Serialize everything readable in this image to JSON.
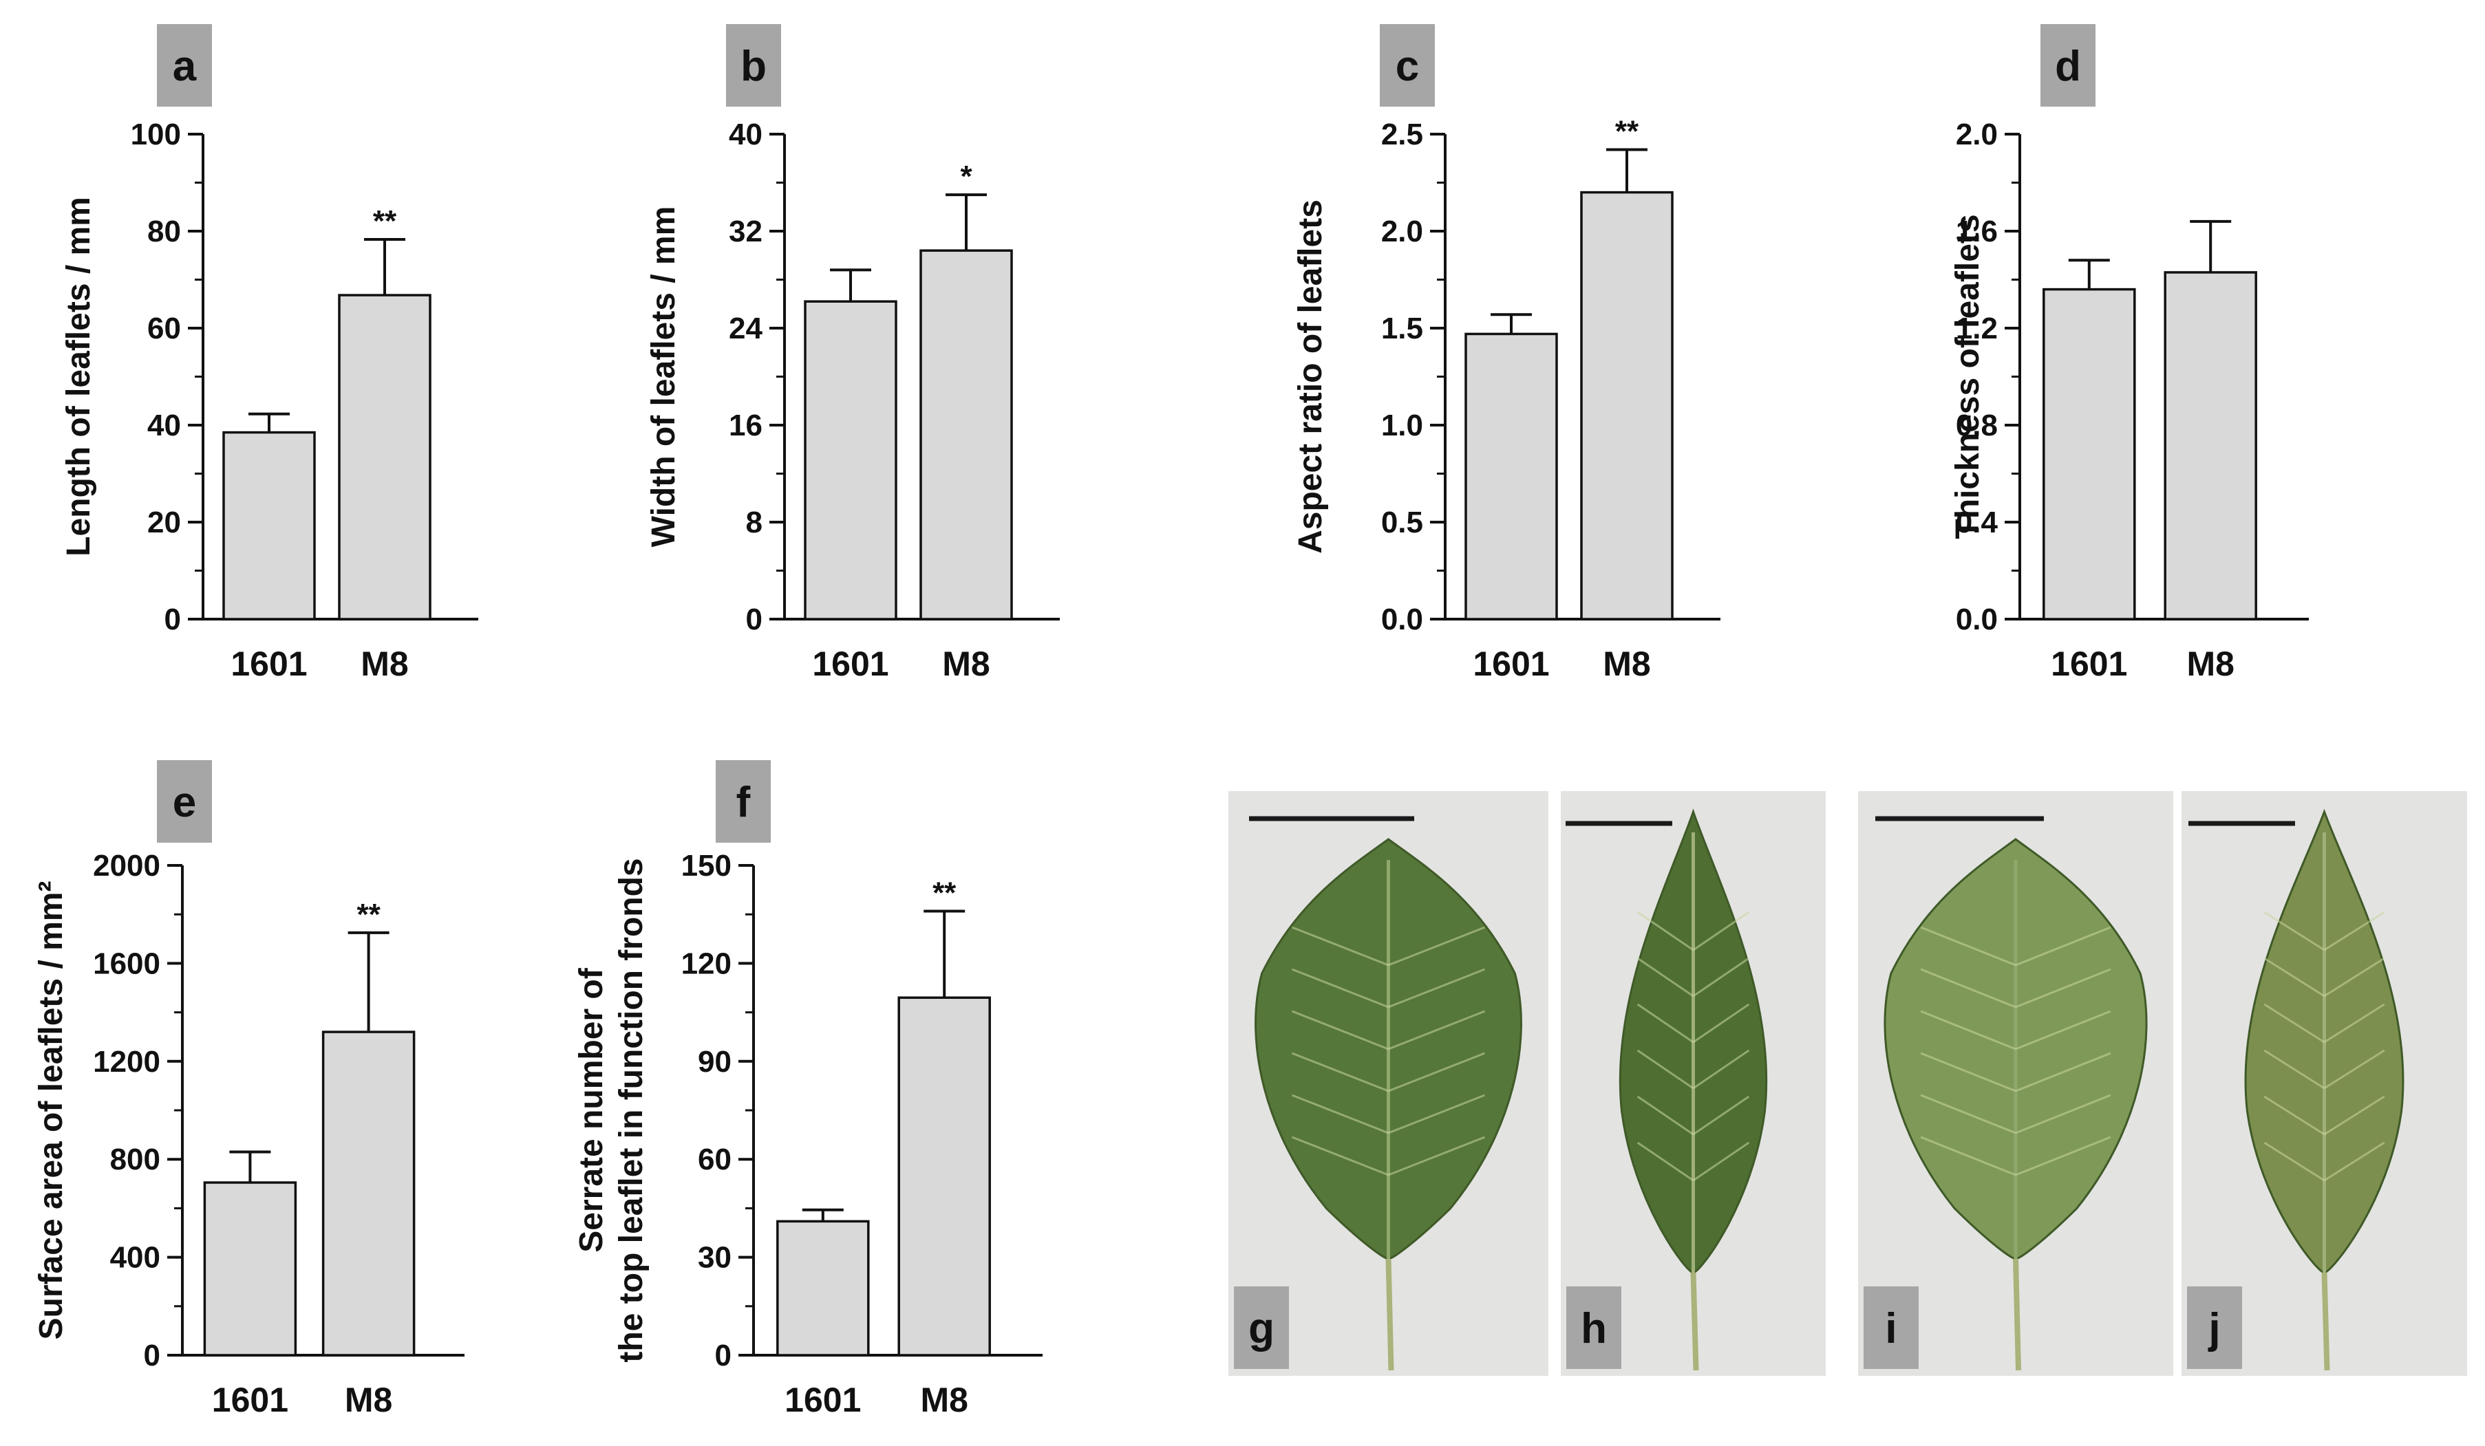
{
  "chart_data": [
    {
      "panel": "a",
      "type": "bar",
      "categories": [
        "1601",
        "M8"
      ],
      "values": [
        38.5,
        66.8
      ],
      "errors": [
        3.8,
        11.5
      ],
      "significance": [
        "",
        "**"
      ],
      "ylabel": "Length of leaflets / mm",
      "ylim": [
        0,
        100
      ],
      "yticks": [
        0,
        20,
        40,
        60,
        80,
        100
      ],
      "tick_labels": [
        "0",
        "20",
        "40",
        "60",
        "80",
        "100"
      ]
    },
    {
      "panel": "b",
      "type": "bar",
      "categories": [
        "1601",
        "M8"
      ],
      "values": [
        26.2,
        30.4
      ],
      "errors": [
        2.6,
        4.6
      ],
      "significance": [
        "",
        "*"
      ],
      "ylabel": "Width of leaflets / mm",
      "ylim": [
        0,
        40
      ],
      "yticks": [
        0,
        8,
        16,
        24,
        32,
        40
      ],
      "tick_labels": [
        "0",
        "8",
        "16",
        "24",
        "32",
        "40"
      ]
    },
    {
      "panel": "c",
      "type": "bar",
      "categories": [
        "1601",
        "M8"
      ],
      "values": [
        1.47,
        2.2
      ],
      "errors": [
        0.1,
        0.22
      ],
      "significance": [
        "",
        "**"
      ],
      "ylabel": "Aspect ratio of leaflets",
      "ylim": [
        0,
        2.5
      ],
      "yticks": [
        0,
        0.5,
        1,
        1.5,
        2,
        2.5
      ],
      "tick_labels": [
        "0.0",
        "0.5",
        "1.0",
        "1.5",
        "2.0",
        "2.5"
      ]
    },
    {
      "panel": "d",
      "type": "bar",
      "categories": [
        "1601",
        "M8"
      ],
      "values": [
        1.36,
        1.43
      ],
      "errors": [
        0.12,
        0.21
      ],
      "significance": [
        "",
        ""
      ],
      "ylabel": "Thickness of leaflets",
      "ylim": [
        0,
        2
      ],
      "yticks": [
        0,
        0.4,
        0.8,
        1.2,
        1.6,
        2
      ],
      "tick_labels": [
        "0.0",
        "0.4",
        "0.8",
        "1.2",
        "1.6",
        "2.0"
      ]
    },
    {
      "panel": "e",
      "type": "bar",
      "categories": [
        "1601",
        "M8"
      ],
      "values": [
        705,
        1320
      ],
      "errors": [
        125,
        405
      ],
      "significance": [
        "",
        "**"
      ],
      "ylabel": "Surface area of leaflets / mm²",
      "ylim": [
        0,
        2000
      ],
      "yticks": [
        0,
        400,
        800,
        1200,
        1600,
        2000
      ],
      "tick_labels": [
        "0",
        "400",
        "800",
        "1200",
        "1600",
        "2000"
      ]
    },
    {
      "panel": "f",
      "type": "bar",
      "categories": [
        "1601",
        "M8"
      ],
      "values": [
        41,
        109.5
      ],
      "errors": [
        3.5,
        26.5
      ],
      "significance": [
        "",
        "**"
      ],
      "ylabel": "Serrate number of",
      "ylabel_line2": "the top leaflet in function fronds",
      "ylim": [
        0,
        150
      ],
      "yticks": [
        0,
        30,
        60,
        90,
        120,
        150
      ],
      "tick_labels": [
        "0",
        "30",
        "60",
        "90",
        "120",
        "150"
      ]
    }
  ],
  "photos": [
    {
      "letter": "g",
      "shape": "ovate",
      "leaf_color": "#56773a"
    },
    {
      "letter": "h",
      "shape": "lanceolate",
      "leaf_color": "#4f6f32"
    },
    {
      "letter": "i",
      "shape": "ovate",
      "leaf_color": "#7f9a58"
    },
    {
      "letter": "j",
      "shape": "lanceolate",
      "leaf_color": "#7d8f4e"
    }
  ],
  "colors": {
    "bar_fill": "#d9d9d9",
    "axis": "#111111",
    "letter_box": "#a6a6a6",
    "photo_bg": "#e3e3e1"
  }
}
